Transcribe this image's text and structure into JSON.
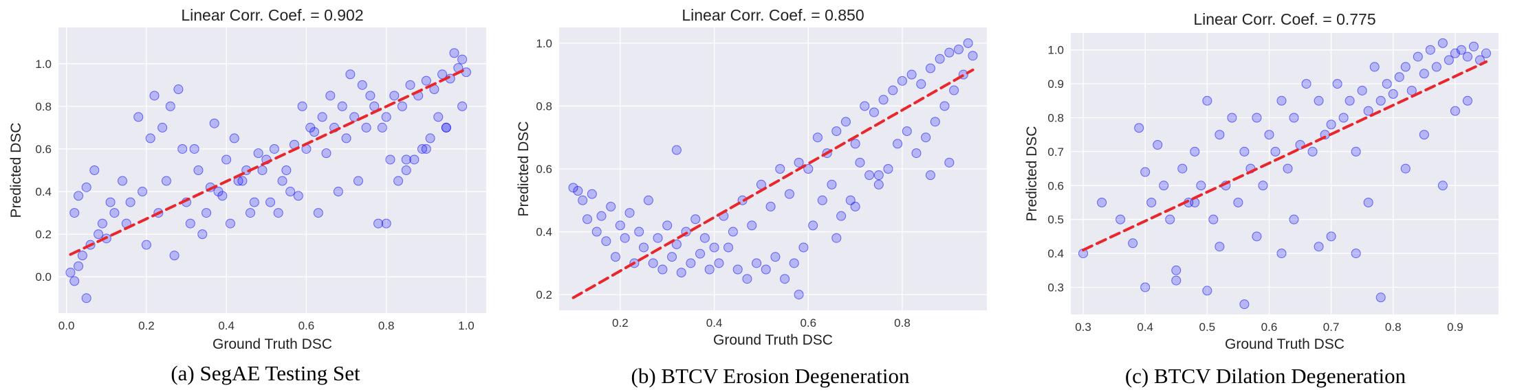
{
  "figure": {
    "panels": [
      {
        "caption": "(a) SegAE Testing Set"
      },
      {
        "caption": "(b) BTCV Erosion Degeneration"
      },
      {
        "caption": "(c) BTCV Dilation Degeneration"
      }
    ]
  },
  "chart_data": [
    {
      "type": "scatter",
      "title": "Linear Corr. Coef. = 0.902",
      "xlabel": "Ground Truth DSC",
      "ylabel": "Predicted DSC",
      "xlim": [
        -0.02,
        1.05
      ],
      "ylim": [
        -0.17,
        1.17
      ],
      "xticks": [
        0.0,
        0.2,
        0.4,
        0.6,
        0.8,
        1.0
      ],
      "yticks": [
        0.0,
        0.2,
        0.4,
        0.6,
        0.8,
        1.0
      ],
      "xtick_labels": [
        "0.0",
        "0.2",
        "0.4",
        "0.6",
        "0.8",
        "1.0"
      ],
      "ytick_labels": [
        "0.0",
        "0.2",
        "0.4",
        "0.6",
        "0.8",
        "1.0"
      ],
      "grid": true,
      "point_color": "#0000ff",
      "fit_line": {
        "color": "#e8262b",
        "style": "dashed",
        "x": [
          0.01,
          1.0
        ],
        "y": [
          0.105,
          0.975
        ]
      },
      "series": [
        {
          "x": [
            0.01,
            0.02,
            0.03,
            0.05,
            0.04,
            0.06,
            0.08,
            0.1,
            0.12,
            0.15,
            0.16,
            0.19,
            0.2,
            0.23,
            0.25,
            0.27,
            0.3,
            0.33,
            0.35,
            0.38,
            0.4,
            0.43,
            0.45,
            0.48,
            0.5,
            0.52,
            0.55,
            0.57,
            0.6,
            0.62,
            0.65,
            0.67,
            0.7,
            0.72,
            0.75,
            0.77,
            0.8,
            0.82,
            0.84,
            0.86,
            0.88,
            0.9,
            0.92,
            0.94,
            0.96,
            0.98,
            0.99,
            1.0,
            0.97,
            0.95,
            0.93,
            0.91,
            0.89,
            0.87,
            0.85,
            0.83,
            0.81,
            0.79,
            0.76,
            0.74,
            0.71,
            0.69,
            0.66,
            0.64,
            0.61,
            0.59,
            0.56,
            0.54,
            0.51,
            0.49,
            0.46,
            0.44,
            0.41,
            0.39,
            0.36,
            0.34,
            0.31,
            0.29,
            0.26,
            0.24,
            0.21,
            0.18,
            0.14,
            0.11,
            0.09,
            0.07,
            0.02,
            0.03,
            0.05,
            0.22,
            0.28,
            0.32,
            0.37,
            0.42,
            0.47,
            0.53,
            0.58,
            0.63,
            0.68,
            0.73,
            0.78,
            0.85,
            0.9,
            0.95,
            0.99,
            0.8
          ],
          "y": [
            0.02,
            -0.02,
            0.05,
            -0.1,
            0.1,
            0.15,
            0.2,
            0.18,
            0.3,
            0.25,
            0.35,
            0.4,
            0.15,
            0.3,
            0.45,
            0.1,
            0.35,
            0.5,
            0.3,
            0.4,
            0.55,
            0.45,
            0.5,
            0.58,
            0.55,
            0.6,
            0.5,
            0.62,
            0.6,
            0.68,
            0.58,
            0.7,
            0.65,
            0.75,
            0.7,
            0.8,
            0.75,
            0.85,
            0.8,
            0.9,
            0.85,
            0.92,
            0.88,
            0.95,
            0.93,
            0.98,
            1.02,
            0.96,
            1.05,
            0.7,
            0.75,
            0.65,
            0.6,
            0.55,
            0.5,
            0.45,
            0.55,
            0.7,
            0.85,
            0.9,
            0.95,
            0.8,
            0.85,
            0.75,
            0.7,
            0.8,
            0.4,
            0.45,
            0.35,
            0.5,
            0.3,
            0.45,
            0.25,
            0.38,
            0.42,
            0.2,
            0.25,
            0.6,
            0.8,
            0.7,
            0.65,
            0.75,
            0.45,
            0.35,
            0.25,
            0.5,
            0.3,
            0.38,
            0.42,
            0.85,
            0.88,
            0.6,
            0.72,
            0.65,
            0.35,
            0.3,
            0.38,
            0.3,
            0.4,
            0.45,
            0.25,
            0.55,
            0.6,
            0.7,
            0.8,
            0.25
          ]
        }
      ]
    },
    {
      "type": "scatter",
      "title": "Linear Corr. Coef. = 0.850",
      "xlabel": "Ground Truth DSC",
      "ylabel": "Predicted DSC",
      "xlim": [
        0.07,
        0.98
      ],
      "ylim": [
        0.15,
        1.05
      ],
      "xticks": [
        0.2,
        0.4,
        0.6,
        0.8
      ],
      "yticks": [
        0.2,
        0.4,
        0.6,
        0.8,
        1.0
      ],
      "xtick_labels": [
        "0.2",
        "0.4",
        "0.6",
        "0.8"
      ],
      "ytick_labels": [
        "0.2",
        "0.4",
        "0.6",
        "0.8",
        "1.0"
      ],
      "grid": true,
      "point_color": "#0000ff",
      "fit_line": {
        "color": "#e8262b",
        "style": "dashed",
        "x": [
          0.1,
          0.95
        ],
        "y": [
          0.19,
          0.915
        ]
      },
      "series": [
        {
          "x": [
            0.1,
            0.12,
            0.14,
            0.16,
            0.18,
            0.2,
            0.22,
            0.24,
            0.26,
            0.28,
            0.3,
            0.32,
            0.34,
            0.36,
            0.38,
            0.4,
            0.42,
            0.44,
            0.46,
            0.48,
            0.5,
            0.52,
            0.54,
            0.56,
            0.58,
            0.6,
            0.62,
            0.64,
            0.66,
            0.68,
            0.7,
            0.72,
            0.74,
            0.76,
            0.78,
            0.8,
            0.82,
            0.84,
            0.86,
            0.88,
            0.9,
            0.92,
            0.94,
            0.95,
            0.93,
            0.91,
            0.89,
            0.87,
            0.85,
            0.83,
            0.81,
            0.79,
            0.77,
            0.75,
            0.73,
            0.71,
            0.69,
            0.67,
            0.65,
            0.63,
            0.61,
            0.59,
            0.57,
            0.55,
            0.53,
            0.51,
            0.49,
            0.47,
            0.45,
            0.43,
            0.41,
            0.39,
            0.37,
            0.35,
            0.33,
            0.31,
            0.29,
            0.27,
            0.25,
            0.23,
            0.21,
            0.19,
            0.17,
            0.15,
            0.13,
            0.11,
            0.32,
            0.58,
            0.66,
            0.7,
            0.75,
            0.86,
            0.9
          ],
          "y": [
            0.54,
            0.5,
            0.52,
            0.45,
            0.48,
            0.42,
            0.46,
            0.4,
            0.5,
            0.38,
            0.42,
            0.36,
            0.4,
            0.44,
            0.38,
            0.35,
            0.45,
            0.4,
            0.5,
            0.42,
            0.55,
            0.48,
            0.6,
            0.52,
            0.62,
            0.6,
            0.7,
            0.65,
            0.72,
            0.75,
            0.68,
            0.8,
            0.78,
            0.82,
            0.85,
            0.88,
            0.9,
            0.87,
            0.92,
            0.95,
            0.97,
            0.98,
            1.0,
            0.96,
            0.9,
            0.85,
            0.8,
            0.75,
            0.7,
            0.65,
            0.72,
            0.68,
            0.6,
            0.55,
            0.58,
            0.62,
            0.5,
            0.45,
            0.55,
            0.5,
            0.42,
            0.35,
            0.3,
            0.25,
            0.32,
            0.28,
            0.3,
            0.25,
            0.28,
            0.35,
            0.3,
            0.28,
            0.33,
            0.3,
            0.27,
            0.32,
            0.28,
            0.3,
            0.35,
            0.3,
            0.38,
            0.32,
            0.37,
            0.4,
            0.44,
            0.53,
            0.66,
            0.2,
            0.38,
            0.48,
            0.58,
            0.58,
            0.62
          ]
        }
      ]
    },
    {
      "type": "scatter",
      "title": "Linear Corr. Coef. = 0.775",
      "xlabel": "Ground Truth DSC",
      "ylabel": "Predicted DSC",
      "xlim": [
        0.28,
        0.97
      ],
      "ylim": [
        0.22,
        1.05
      ],
      "xticks": [
        0.3,
        0.4,
        0.5,
        0.6,
        0.7,
        0.8,
        0.9
      ],
      "yticks": [
        0.3,
        0.4,
        0.5,
        0.6,
        0.7,
        0.8,
        0.9,
        1.0
      ],
      "xtick_labels": [
        "0.3",
        "0.4",
        "0.5",
        "0.6",
        "0.7",
        "0.8",
        "0.9"
      ],
      "ytick_labels": [
        "0.3",
        "0.4",
        "0.5",
        "0.6",
        "0.7",
        "0.8",
        "0.9",
        "1.0"
      ],
      "grid": true,
      "point_color": "#0000ff",
      "fit_line": {
        "color": "#e8262b",
        "style": "dashed",
        "x": [
          0.3,
          0.95
        ],
        "y": [
          0.41,
          0.965
        ]
      },
      "series": [
        {
          "x": [
            0.3,
            0.33,
            0.36,
            0.38,
            0.39,
            0.4,
            0.41,
            0.42,
            0.43,
            0.44,
            0.45,
            0.46,
            0.47,
            0.48,
            0.49,
            0.5,
            0.51,
            0.52,
            0.53,
            0.54,
            0.55,
            0.56,
            0.57,
            0.58,
            0.59,
            0.6,
            0.61,
            0.62,
            0.63,
            0.64,
            0.65,
            0.66,
            0.67,
            0.68,
            0.69,
            0.7,
            0.71,
            0.72,
            0.73,
            0.74,
            0.75,
            0.76,
            0.77,
            0.78,
            0.79,
            0.8,
            0.81,
            0.82,
            0.83,
            0.84,
            0.85,
            0.86,
            0.87,
            0.88,
            0.89,
            0.9,
            0.91,
            0.92,
            0.93,
            0.94,
            0.95,
            0.4,
            0.45,
            0.5,
            0.56,
            0.62,
            0.68,
            0.74,
            0.78,
            0.85,
            0.9,
            0.92,
            0.88,
            0.82,
            0.76,
            0.7,
            0.64,
            0.58,
            0.52,
            0.48
          ],
          "y": [
            0.4,
            0.55,
            0.5,
            0.43,
            0.77,
            0.64,
            0.55,
            0.72,
            0.6,
            0.5,
            0.35,
            0.65,
            0.55,
            0.7,
            0.6,
            0.85,
            0.5,
            0.75,
            0.6,
            0.8,
            0.55,
            0.7,
            0.65,
            0.8,
            0.6,
            0.75,
            0.7,
            0.85,
            0.65,
            0.8,
            0.72,
            0.9,
            0.7,
            0.85,
            0.75,
            0.78,
            0.9,
            0.8,
            0.85,
            0.7,
            0.88,
            0.82,
            0.95,
            0.85,
            0.9,
            0.87,
            0.92,
            0.95,
            0.88,
            0.98,
            0.93,
            1.0,
            0.95,
            1.02,
            0.97,
            0.99,
            1.0,
            0.98,
            1.01,
            0.97,
            0.99,
            0.3,
            0.32,
            0.29,
            0.25,
            0.4,
            0.42,
            0.4,
            0.27,
            0.75,
            0.82,
            0.85,
            0.6,
            0.65,
            0.55,
            0.45,
            0.5,
            0.45,
            0.42,
            0.55
          ]
        }
      ]
    }
  ]
}
